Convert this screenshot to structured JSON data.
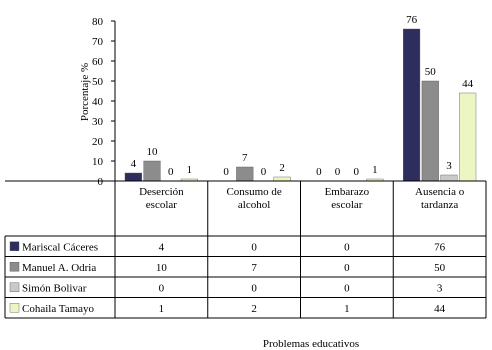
{
  "chart_data": {
    "type": "bar",
    "categories": [
      [
        "Deserción",
        "escolar"
      ],
      [
        "Consumo de",
        "alcohol"
      ],
      [
        "Embarazo",
        "escolar"
      ],
      [
        "Ausencia o",
        "tardanza"
      ]
    ],
    "series": [
      {
        "name": "Mariscal Cáceres",
        "values": [
          4,
          0,
          0,
          76
        ],
        "color": "#2e2e5e"
      },
      {
        "name": "Manuel A. Odria",
        "values": [
          10,
          7,
          0,
          50
        ],
        "color": "#8c8c8c"
      },
      {
        "name": "Simón Bolivar",
        "values": [
          0,
          0,
          0,
          3
        ],
        "color": "#c9c9c9"
      },
      {
        "name": "Cohaila Tamayo",
        "values": [
          1,
          2,
          1,
          44
        ],
        "color": "#ecf6c2"
      }
    ],
    "ylabel": "Porcentaje %",
    "xlabel": "Problemas educativos",
    "ylim": [
      0,
      80
    ],
    "yticks": [
      0,
      10,
      20,
      30,
      40,
      50,
      60,
      70,
      80
    ],
    "grid": false,
    "legend": "data-table"
  }
}
